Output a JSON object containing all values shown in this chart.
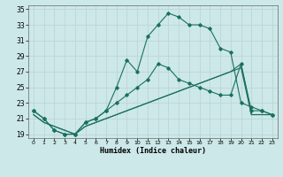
{
  "xlabel": "Humidex (Indice chaleur)",
  "bg_color": "#cce8e8",
  "grid_color": "#c0d4d4",
  "line_color": "#1a7060",
  "xlim": [
    0,
    23
  ],
  "ylim": [
    18.5,
    35.5
  ],
  "yticks": [
    19,
    21,
    23,
    25,
    27,
    29,
    31,
    33,
    35
  ],
  "xticks": [
    0,
    1,
    2,
    3,
    4,
    5,
    6,
    7,
    8,
    9,
    10,
    11,
    12,
    13,
    14,
    15,
    16,
    17,
    18,
    19,
    20,
    21,
    22,
    23
  ],
  "series": [
    {
      "x": [
        0,
        1,
        2,
        3,
        4,
        5,
        6,
        7,
        8,
        9,
        10,
        11,
        12,
        13,
        14,
        15,
        16,
        17,
        18,
        19,
        20,
        21,
        22,
        23
      ],
      "y": [
        21.5,
        20.5,
        20,
        19.5,
        19,
        20,
        20.5,
        21,
        21.5,
        22,
        22.5,
        23,
        23.5,
        24,
        24.5,
        25,
        25.5,
        26,
        26.5,
        27,
        28,
        21.5,
        21.5,
        21.5
      ],
      "marker": false
    },
    {
      "x": [
        0,
        1,
        2,
        3,
        4,
        5,
        6,
        7,
        8,
        9,
        10,
        11,
        12,
        13,
        14,
        15,
        16,
        17,
        18,
        19,
        20,
        21,
        22,
        23
      ],
      "y": [
        21.5,
        20.5,
        20,
        19.5,
        19,
        20,
        20.5,
        21,
        21.5,
        22,
        22.5,
        23,
        23.5,
        24,
        24.5,
        25,
        25.5,
        26,
        26.5,
        27,
        27.5,
        21.5,
        21.5,
        21.5
      ],
      "marker": false
    },
    {
      "x": [
        0,
        1,
        2,
        3,
        4,
        5,
        6,
        7,
        8,
        9,
        10,
        11,
        12,
        13,
        14,
        15,
        16,
        17,
        18,
        19,
        20,
        21,
        22,
        23
      ],
      "y": [
        22,
        21,
        19.5,
        19,
        19,
        20.5,
        21,
        22,
        23,
        24,
        25,
        26,
        28,
        27.5,
        26,
        25.5,
        25,
        24.5,
        24,
        24,
        28,
        22,
        22,
        21.5
      ],
      "marker": true
    },
    {
      "x": [
        0,
        1,
        2,
        3,
        4,
        5,
        6,
        7,
        8,
        9,
        10,
        11,
        12,
        13,
        14,
        15,
        16,
        17,
        18,
        19,
        20,
        21,
        22,
        23
      ],
      "y": [
        22,
        21,
        19.5,
        19,
        19,
        20.5,
        21,
        22,
        25,
        28.5,
        27,
        31.5,
        33,
        34.5,
        34,
        33,
        33,
        32.5,
        30,
        29.5,
        23,
        22.5,
        22,
        21.5
      ],
      "marker": true
    }
  ]
}
